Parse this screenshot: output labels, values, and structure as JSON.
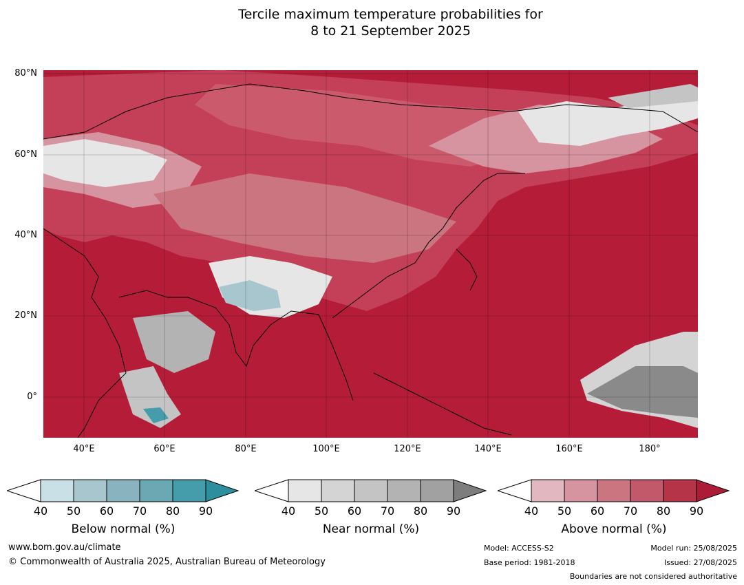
{
  "title_line1": "Tercile maximum temperature probabilities for",
  "title_line2": "8 to 21 September 2025",
  "map": {
    "lat_labels": [
      "80°N",
      "60°N",
      "40°N",
      "20°N",
      "0°"
    ],
    "lon_labels": [
      "40°E",
      "60°E",
      "80°E",
      "100°E",
      "120°E",
      "140°E",
      "160°E",
      "180°"
    ],
    "colors": {
      "ocean_above": "#b41c38",
      "land_above": "#c44058"
    }
  },
  "colorbars": [
    {
      "title": "Below normal (%)",
      "ticks": [
        "40",
        "50",
        "60",
        "70",
        "80",
        "90"
      ],
      "colors": [
        "#ffffff",
        "#c9e0e6",
        "#a7c6cd",
        "#89b3be",
        "#6aa8b4",
        "#459cab",
        "#2d8f9d"
      ]
    },
    {
      "title": "Near normal (%)",
      "ticks": [
        "40",
        "50",
        "60",
        "70",
        "80",
        "90"
      ],
      "colors": [
        "#ffffff",
        "#e6e6e6",
        "#d4d4d4",
        "#c4c4c4",
        "#b3b3b3",
        "#a1a1a1",
        "#7d7d7d"
      ]
    },
    {
      "title": "Above normal (%)",
      "ticks": [
        "40",
        "50",
        "60",
        "70",
        "80",
        "90"
      ],
      "colors": [
        "#ffffff",
        "#e3b7bf",
        "#d5949f",
        "#cb7581",
        "#c2596a",
        "#b63448",
        "#ac1c36"
      ]
    }
  ],
  "footer": {
    "website": "www.bom.gov.au/climate",
    "copyright": "© Commonwealth of Australia 2025, Australian Bureau of Meteorology",
    "model": "Model: ACCESS-S2",
    "base_period": "Base period: 1981-2018",
    "model_run": "Model run: 25/08/2025",
    "issued": "Issued: 27/08/2025",
    "disclaimer": "Boundaries are not considered authoritative"
  }
}
